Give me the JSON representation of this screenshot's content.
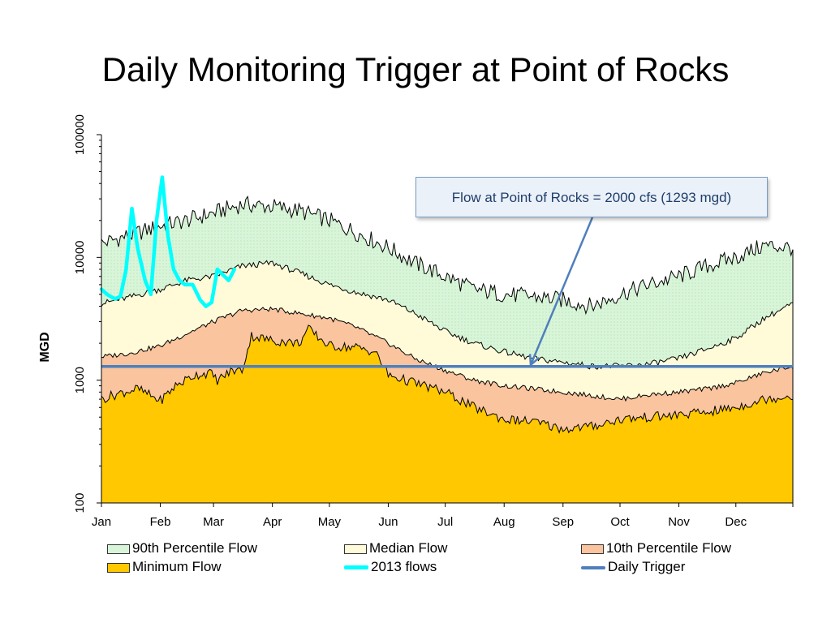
{
  "title": "Daily Monitoring Trigger at Point of Rocks",
  "annotation": "Flow at Point of Rocks = 2000 cfs (1293 mgd)",
  "chart_data": {
    "type": "area",
    "ylabel": "MGD",
    "yscale": "log",
    "ylim": [
      100,
      100000
    ],
    "yticks": [
      "100",
      "1000",
      "10000",
      "100000"
    ],
    "xlim": [
      1,
      365
    ],
    "months": [
      "Jan",
      "Feb",
      "Mar",
      "Apr",
      "May",
      "Jun",
      "Jul",
      "Aug",
      "Sep",
      "Oct",
      "Nov",
      "Dec"
    ],
    "month_start_day": [
      1,
      32,
      60,
      91,
      121,
      152,
      182,
      213,
      244,
      274,
      305,
      335
    ],
    "series": [
      {
        "name": "90th Percentile Flow",
        "color": "#d9f5d9",
        "x": [
          1,
          15,
          32,
          46,
          60,
          75,
          91,
          105,
          121,
          135,
          152,
          166,
          182,
          197,
          213,
          228,
          244,
          259,
          274,
          289,
          305,
          320,
          335,
          350,
          365
        ],
        "y": [
          13000,
          15000,
          18000,
          20000,
          23000,
          27000,
          26000,
          24000,
          20000,
          16000,
          12000,
          9000,
          7000,
          5500,
          5000,
          4800,
          4500,
          4000,
          5000,
          6000,
          7000,
          8500,
          10000,
          12500,
          12000
        ]
      },
      {
        "name": "Median Flow",
        "color": "#fffbd9",
        "x": [
          1,
          15,
          32,
          46,
          60,
          75,
          91,
          105,
          121,
          135,
          152,
          166,
          182,
          197,
          213,
          228,
          244,
          259,
          274,
          289,
          305,
          320,
          335,
          350,
          365
        ],
        "y": [
          4200,
          4700,
          5500,
          6500,
          7000,
          8500,
          9000,
          7500,
          6000,
          5200,
          4500,
          3500,
          2500,
          2000,
          1700,
          1500,
          1400,
          1300,
          1300,
          1350,
          1500,
          1800,
          2200,
          3200,
          4200
        ]
      },
      {
        "name": "10th Percentile Flow",
        "color": "#f9c49e",
        "x": [
          1,
          15,
          32,
          46,
          60,
          75,
          91,
          105,
          121,
          135,
          152,
          166,
          182,
          197,
          213,
          228,
          244,
          259,
          274,
          289,
          305,
          320,
          335,
          350,
          365
        ],
        "y": [
          1550,
          1650,
          1900,
          2400,
          3000,
          3700,
          3800,
          3500,
          3200,
          2700,
          2000,
          1500,
          1200,
          1000,
          900,
          850,
          800,
          750,
          700,
          760,
          800,
          850,
          950,
          1150,
          1300
        ]
      },
      {
        "name": "Minimum Flow",
        "color": "#ffc800",
        "x": [
          1,
          10,
          20,
          32,
          40,
          50,
          58,
          62,
          70,
          75,
          80,
          91,
          105,
          110,
          121,
          135,
          145,
          152,
          166,
          182,
          197,
          213,
          228,
          244,
          259,
          274,
          289,
          305,
          320,
          335,
          350,
          365
        ],
        "y": [
          700,
          780,
          850,
          680,
          900,
          1100,
          1150,
          1000,
          1200,
          1200,
          2300,
          2100,
          2000,
          2600,
          1900,
          1850,
          1700,
          1100,
          950,
          800,
          600,
          480,
          460,
          400,
          420,
          480,
          500,
          520,
          550,
          600,
          700,
          750
        ]
      },
      {
        "name": "2013 flows",
        "color": "#00ffff",
        "x": [
          1,
          4,
          8,
          11,
          14,
          17,
          20,
          24,
          27,
          30,
          33,
          36,
          39,
          42,
          45,
          49,
          53,
          56,
          59,
          62,
          65,
          68,
          71
        ],
        "y": [
          5500,
          5000,
          4600,
          4800,
          8000,
          25000,
          12000,
          6500,
          5000,
          20000,
          45000,
          15000,
          8000,
          6500,
          6000,
          6000,
          4500,
          4000,
          4300,
          8000,
          7200,
          6500,
          8000
        ]
      },
      {
        "name": "Daily Trigger",
        "color": "#4f7fbd",
        "y": 1293
      }
    ]
  }
}
